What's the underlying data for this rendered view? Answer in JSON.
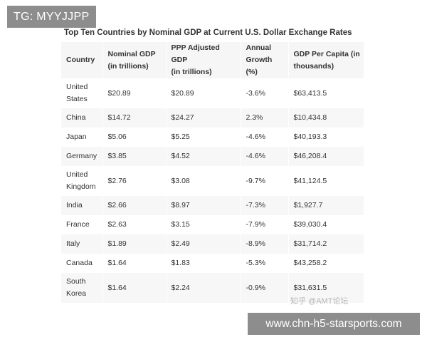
{
  "badge": {
    "text": "TG: MYYJJPP"
  },
  "title": "Top Ten Countries by Nominal GDP at Current U.S. Dollar Exchange Rates",
  "table": {
    "headers": [
      [
        "Country"
      ],
      [
        "Nominal GDP",
        "(in trillions)"
      ],
      [
        "PPP Adjusted GDP",
        "(in trillions)"
      ],
      [
        "Annual",
        "Growth (%)"
      ],
      [
        "GDP Per Capita (in",
        "thousands)"
      ]
    ],
    "rows": [
      {
        "country": [
          "United",
          "States"
        ],
        "nominal": "$20.89",
        "ppp": "$20.89",
        "growth": "-3.6%",
        "per_capita": "$63,413.5"
      },
      {
        "country": [
          "China"
        ],
        "nominal": "$14.72",
        "ppp": "$24.27",
        "growth": "2.3%",
        "per_capita": "$10,434.8"
      },
      {
        "country": [
          "Japan"
        ],
        "nominal": "$5.06",
        "ppp": "$5.25",
        "growth": "-4.6%",
        "per_capita": "$40,193.3"
      },
      {
        "country": [
          "Germany"
        ],
        "nominal": "$3.85",
        "ppp": "$4.52",
        "growth": "-4.6%",
        "per_capita": "$46,208.4"
      },
      {
        "country": [
          "United",
          "Kingdom"
        ],
        "nominal": "$2.76",
        "ppp": "$3.08",
        "growth": "-9.7%",
        "per_capita": "$41,124.5"
      },
      {
        "country": [
          "India"
        ],
        "nominal": "$2.66",
        "ppp": "$8.97",
        "growth": "-7.3%",
        "per_capita": "$1,927.7"
      },
      {
        "country": [
          "France"
        ],
        "nominal": "$2.63",
        "ppp": "$3.15",
        "growth": "-7.9%",
        "per_capita": "$39,030.4"
      },
      {
        "country": [
          "Italy"
        ],
        "nominal": "$1.89",
        "ppp": "$2.49",
        "growth": "-8.9%",
        "per_capita": "$31,714.2"
      },
      {
        "country": [
          "Canada"
        ],
        "nominal": "$1.64",
        "ppp": "$1.83",
        "growth": "-5.3%",
        "per_capita": "$43,258.2"
      },
      {
        "country": [
          "South",
          "Korea"
        ],
        "nominal": "$1.64",
        "ppp": "$2.24",
        "growth": "-0.9%",
        "per_capita": "$31,631.5"
      }
    ]
  },
  "watermark": {
    "text": "知乎 @AMT论坛"
  },
  "url_banner": {
    "text": "www.chn-h5-starsports.com"
  },
  "colors": {
    "overlay": "#8d8d8d",
    "header_bg": "#f6f6f6",
    "stripe_bg": "#f7f7f7",
    "text": "#333333"
  }
}
